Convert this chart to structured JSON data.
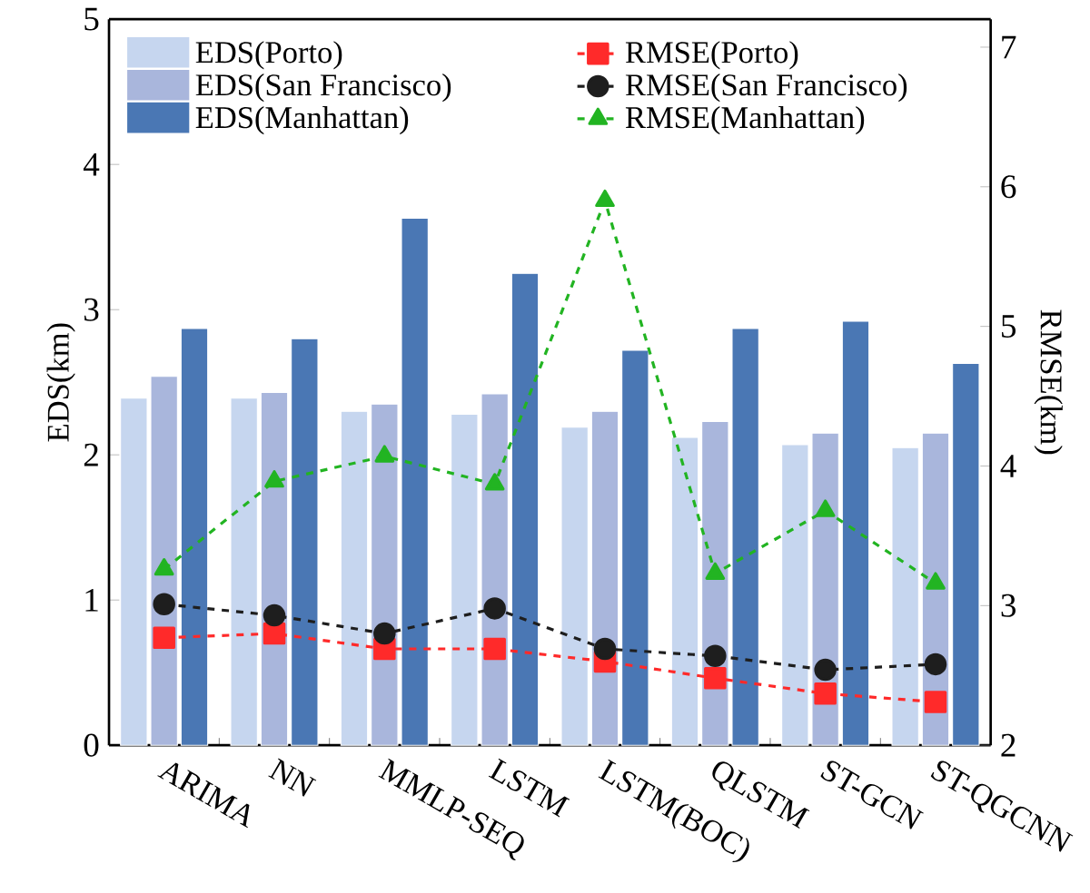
{
  "chart_data": {
    "type": "bar",
    "categories": [
      "ARIMA",
      "NN",
      "MMLP-SEQ",
      "LSTM",
      "LSTM(BOC)",
      "QLSTM",
      "ST-GCN",
      "ST-QGCNN"
    ],
    "ylabel": "EDS(km)",
    "y2label": "RMSE(km)",
    "ylim": [
      0,
      5
    ],
    "yticks": [
      0,
      1,
      2,
      3,
      4,
      5
    ],
    "y2lim": [
      2,
      7.2
    ],
    "y2ticks": [
      2,
      3,
      4,
      5,
      6,
      7
    ],
    "legend": "top",
    "grid": false,
    "series": [
      {
        "name": "EDS(Porto)",
        "color": "#c6d6ef",
        "values": [
          2.39,
          2.39,
          2.3,
          2.28,
          2.19,
          2.12,
          2.07,
          2.05
        ]
      },
      {
        "name": "EDS(San Francisco)",
        "color": "#a9b6dc",
        "values": [
          2.54,
          2.43,
          2.35,
          2.42,
          2.3,
          2.23,
          2.15,
          2.15
        ]
      },
      {
        "name": "EDS(Manhattan)",
        "color": "#4a77b4",
        "values": [
          2.87,
          2.8,
          3.63,
          3.25,
          2.72,
          2.87,
          2.92,
          2.63
        ]
      },
      {
        "name": "RMSE(Porto)",
        "type": "line",
        "axis": "y2",
        "color": "#ff2a2a",
        "marker": "square",
        "line_style": "dashed",
        "values": [
          2.77,
          2.8,
          2.69,
          2.69,
          2.6,
          2.48,
          2.37,
          2.31
        ]
      },
      {
        "name": "RMSE(San Francisco)",
        "type": "line",
        "axis": "y2",
        "color": "#1e1e1e",
        "marker": "circle",
        "line_style": "dashed",
        "values": [
          3.01,
          2.93,
          2.8,
          2.98,
          2.69,
          2.64,
          2.54,
          2.58
        ]
      },
      {
        "name": "RMSE(Manhattan)",
        "type": "line",
        "axis": "y2",
        "color": "#22b422",
        "marker": "triangle",
        "line_style": "dashed",
        "values": [
          3.26,
          3.89,
          4.07,
          3.87,
          5.9,
          3.23,
          3.68,
          3.16
        ]
      }
    ]
  }
}
